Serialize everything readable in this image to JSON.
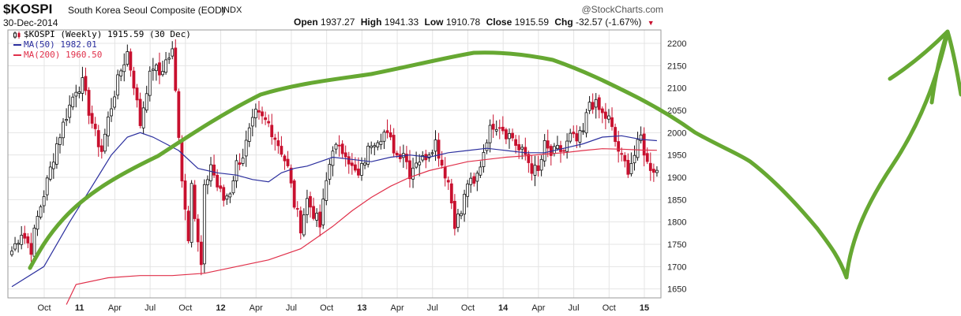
{
  "header": {
    "symbol": "$KOSPI",
    "description": "South Korea Seoul Composite (EOD)",
    "exchange": "INDX",
    "date": "30-Dec-2014",
    "brand": "@StockCharts.com",
    "open_label": "Open",
    "open": "1937.27",
    "high_label": "High",
    "high": "1941.33",
    "low_label": "Low",
    "low": "1910.78",
    "close_label": "Close",
    "close": "1915.59",
    "chg_label": "Chg",
    "chg": "-32.57 (-1.67%)"
  },
  "legend": {
    "price": "$KOSPI (Weekly) 1915.59 (30 Dec)",
    "ma50": "MA(50) 1982.01",
    "ma200": "MA(200) 1960.50"
  },
  "colors": {
    "up": "#111111",
    "down": "#c8102e",
    "ma50": "#2b2f9e",
    "ma200": "#e0304a",
    "annotation": "#66a832",
    "grid": "#e4e4e4"
  },
  "chart_data": {
    "type": "candlestick",
    "interval": "weekly",
    "ylim": [
      1630,
      2230
    ],
    "yticks": [
      1650,
      1700,
      1750,
      1800,
      1850,
      1900,
      1950,
      2000,
      2050,
      2100,
      2150,
      2200
    ],
    "x_tick_labels": [
      {
        "label": "Oct",
        "bold": false
      },
      {
        "label": "11",
        "bold": true
      },
      {
        "label": "Apr",
        "bold": false
      },
      {
        "label": "Jul",
        "bold": false
      },
      {
        "label": "Oct",
        "bold": false
      },
      {
        "label": "12",
        "bold": true
      },
      {
        "label": "Apr",
        "bold": false
      },
      {
        "label": "Jul",
        "bold": false
      },
      {
        "label": "Oct",
        "bold": false
      },
      {
        "label": "13",
        "bold": true
      },
      {
        "label": "Apr",
        "bold": false
      },
      {
        "label": "Jul",
        "bold": false
      },
      {
        "label": "Oct",
        "bold": false
      },
      {
        "label": "14",
        "bold": true
      },
      {
        "label": "Apr",
        "bold": false
      },
      {
        "label": "Jul",
        "bold": false
      },
      {
        "label": "Oct",
        "bold": false
      },
      {
        "label": "15",
        "bold": true
      }
    ],
    "close_series": [
      [
        0,
        1735
      ],
      [
        3,
        1778
      ],
      [
        6,
        1740
      ],
      [
        8,
        1810
      ],
      [
        11,
        1890
      ],
      [
        14,
        1975
      ],
      [
        17,
        2040
      ],
      [
        20,
        2100
      ],
      [
        22,
        2110
      ],
      [
        24,
        2050
      ],
      [
        26,
        1995
      ],
      [
        28,
        1960
      ],
      [
        30,
        2030
      ],
      [
        32,
        2090
      ],
      [
        34,
        2140
      ],
      [
        36,
        2180
      ],
      [
        38,
        2110
      ],
      [
        40,
        2020
      ],
      [
        42,
        2100
      ],
      [
        44,
        2150
      ],
      [
        46,
        2130
      ],
      [
        48,
        2160
      ],
      [
        50,
        2180
      ],
      [
        52,
        2000
      ],
      [
        53,
        1900
      ],
      [
        54,
        1830
      ],
      [
        55,
        1770
      ],
      [
        56,
        1900
      ],
      [
        57,
        1810
      ],
      [
        58,
        1750
      ],
      [
        59,
        1700
      ],
      [
        60,
        1870
      ],
      [
        62,
        1930
      ],
      [
        64,
        1880
      ],
      [
        66,
        1850
      ],
      [
        68,
        1870
      ],
      [
        70,
        1930
      ],
      [
        72,
        1950
      ],
      [
        74,
        2000
      ],
      [
        76,
        2040
      ],
      [
        78,
        2030
      ],
      [
        80,
        2020
      ],
      [
        82,
        1990
      ],
      [
        84,
        1960
      ],
      [
        86,
        1920
      ],
      [
        88,
        1840
      ],
      [
        90,
        1790
      ],
      [
        92,
        1850
      ],
      [
        94,
        1820
      ],
      [
        96,
        1790
      ],
      [
        98,
        1890
      ],
      [
        100,
        1970
      ],
      [
        102,
        1960
      ],
      [
        104,
        1960
      ],
      [
        106,
        1920
      ],
      [
        108,
        1900
      ],
      [
        110,
        1940
      ],
      [
        112,
        1980
      ],
      [
        114,
        1990
      ],
      [
        116,
        2000
      ],
      [
        118,
        1980
      ],
      [
        120,
        1950
      ],
      [
        122,
        1960
      ],
      [
        124,
        1910
      ],
      [
        126,
        1940
      ],
      [
        128,
        1940
      ],
      [
        130,
        1960
      ],
      [
        132,
        1980
      ],
      [
        134,
        1930
      ],
      [
        136,
        1890
      ],
      [
        138,
        1800
      ],
      [
        140,
        1820
      ],
      [
        142,
        1890
      ],
      [
        144,
        1880
      ],
      [
        146,
        1930
      ],
      [
        148,
        1990
      ],
      [
        150,
        2020
      ],
      [
        152,
        2020
      ],
      [
        154,
        2000
      ],
      [
        156,
        1990
      ],
      [
        158,
        1960
      ],
      [
        160,
        1950
      ],
      [
        162,
        1920
      ],
      [
        164,
        1910
      ],
      [
        166,
        1970
      ],
      [
        168,
        1950
      ],
      [
        170,
        1960
      ],
      [
        172,
        1960
      ],
      [
        174,
        1990
      ],
      [
        176,
        1980
      ],
      [
        178,
        2000
      ],
      [
        180,
        2070
      ],
      [
        182,
        2060
      ],
      [
        184,
        2040
      ],
      [
        186,
        2030
      ],
      [
        188,
        1980
      ],
      [
        190,
        1940
      ],
      [
        192,
        1920
      ],
      [
        194,
        1950
      ],
      [
        196,
        1990
      ],
      [
        198,
        1930
      ],
      [
        200,
        1920
      ],
      [
        201,
        1915.59
      ]
    ],
    "ma50_series": [
      [
        0,
        1655
      ],
      [
        10,
        1700
      ],
      [
        18,
        1800
      ],
      [
        25,
        1880
      ],
      [
        31,
        1950
      ],
      [
        36,
        1990
      ],
      [
        40,
        2000
      ],
      [
        44,
        1990
      ],
      [
        48,
        1975
      ],
      [
        52,
        1960
      ],
      [
        58,
        1920
      ],
      [
        64,
        1910
      ],
      [
        70,
        1905
      ],
      [
        75,
        1895
      ],
      [
        80,
        1890
      ],
      [
        84,
        1910
      ],
      [
        88,
        1920
      ],
      [
        92,
        1925
      ],
      [
        96,
        1935
      ],
      [
        100,
        1945
      ],
      [
        106,
        1940
      ],
      [
        112,
        1935
      ],
      [
        118,
        1945
      ],
      [
        124,
        1950
      ],
      [
        130,
        1945
      ],
      [
        136,
        1955
      ],
      [
        142,
        1960
      ],
      [
        148,
        1965
      ],
      [
        154,
        1960
      ],
      [
        160,
        1955
      ],
      [
        166,
        1955
      ],
      [
        172,
        1965
      ],
      [
        178,
        1975
      ],
      [
        184,
        1990
      ],
      [
        190,
        1993
      ],
      [
        196,
        1985
      ],
      [
        201,
        1982.01
      ]
    ],
    "ma200_series": [
      [
        17,
        1615
      ],
      [
        20,
        1660
      ],
      [
        30,
        1675
      ],
      [
        40,
        1680
      ],
      [
        50,
        1680
      ],
      [
        60,
        1685
      ],
      [
        70,
        1700
      ],
      [
        80,
        1715
      ],
      [
        90,
        1740
      ],
      [
        96,
        1770
      ],
      [
        100,
        1790
      ],
      [
        106,
        1825
      ],
      [
        112,
        1855
      ],
      [
        118,
        1880
      ],
      [
        124,
        1900
      ],
      [
        130,
        1915
      ],
      [
        136,
        1925
      ],
      [
        142,
        1935
      ],
      [
        148,
        1940
      ],
      [
        154,
        1945
      ],
      [
        160,
        1948
      ],
      [
        166,
        1952
      ],
      [
        172,
        1955
      ],
      [
        178,
        1960
      ],
      [
        184,
        1964
      ],
      [
        190,
        1963
      ],
      [
        196,
        1961
      ],
      [
        201,
        1960.5
      ]
    ]
  }
}
